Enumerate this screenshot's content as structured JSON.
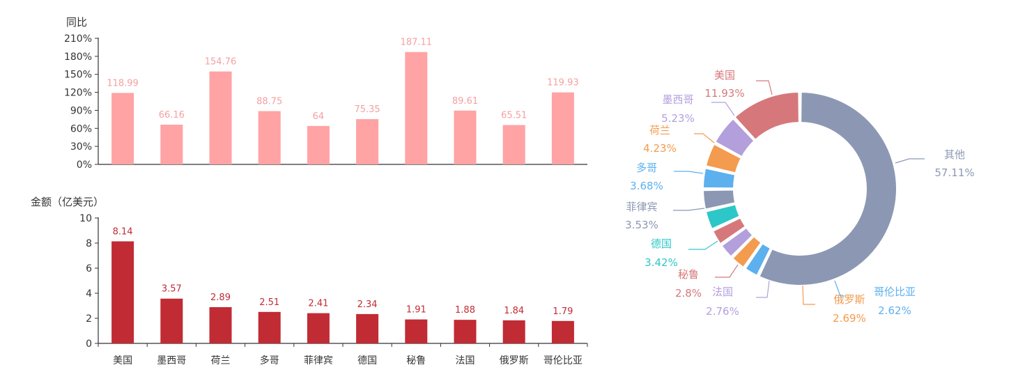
{
  "chart_data": [
    {
      "type": "bar",
      "ylabel": "同比",
      "categories": [
        "美国",
        "墨西哥",
        "荷兰",
        "多哥",
        "菲律宾",
        "德国",
        "秘鲁",
        "法国",
        "俄罗斯",
        "哥伦比亚"
      ],
      "values": [
        118.99,
        66.16,
        154.76,
        88.75,
        64,
        75.35,
        187.11,
        89.61,
        65.51,
        119.93
      ],
      "value_labels": [
        "118.99",
        "66.16",
        "154.76",
        "88.75",
        "64",
        "75.35",
        "187.11",
        "89.61",
        "65.51",
        "119.93"
      ],
      "yticks": [
        "0%",
        "30%",
        "60%",
        "90%",
        "120%",
        "150%",
        "180%",
        "210%"
      ],
      "ylim": [
        0,
        210
      ],
      "color": "#ffa3a4",
      "label_color": "#f4a0a2"
    },
    {
      "type": "bar",
      "ylabel": "金额（亿美元）",
      "categories": [
        "美国",
        "墨西哥",
        "荷兰",
        "多哥",
        "菲律宾",
        "德国",
        "秘鲁",
        "法国",
        "俄罗斯",
        "哥伦比亚"
      ],
      "values": [
        8.14,
        3.57,
        2.89,
        2.51,
        2.41,
        2.34,
        1.91,
        1.88,
        1.84,
        1.79
      ],
      "value_labels": [
        "8.14",
        "3.57",
        "2.89",
        "2.51",
        "2.41",
        "2.34",
        "1.91",
        "1.88",
        "1.84",
        "1.79"
      ],
      "yticks": [
        "0",
        "2",
        "4",
        "6",
        "8",
        "10"
      ],
      "ylim": [
        0,
        10
      ],
      "color": "#c12b34",
      "label_color": "#c12b34"
    },
    {
      "type": "pie",
      "slices": [
        {
          "name": "美国",
          "pct_label": "11.93%",
          "value": 11.93,
          "color": "#d6787b"
        },
        {
          "name": "墨西哥",
          "pct_label": "5.23%",
          "value": 5.23,
          "color": "#b39fdc"
        },
        {
          "name": "荷兰",
          "pct_label": "4.23%",
          "value": 4.23,
          "color": "#f39b4e"
        },
        {
          "name": "多哥",
          "pct_label": "3.68%",
          "value": 3.68,
          "color": "#5cb0ee"
        },
        {
          "name": "菲律宾",
          "pct_label": "3.53%",
          "value": 3.53,
          "color": "#8c98b3"
        },
        {
          "name": "德国",
          "pct_label": "3.42%",
          "value": 3.42,
          "color": "#2ec7c9"
        },
        {
          "name": "秘鲁",
          "pct_label": "2.8%",
          "value": 2.8,
          "color": "#d6787b"
        },
        {
          "name": "法国",
          "pct_label": "2.76%",
          "value": 2.76,
          "color": "#b39fdc"
        },
        {
          "name": "俄罗斯",
          "pct_label": "2.69%",
          "value": 2.69,
          "color": "#f39b4e"
        },
        {
          "name": "哥伦比亚",
          "pct_label": "2.62%",
          "value": 2.62,
          "color": "#5cb0ee"
        },
        {
          "name": "其他",
          "pct_label": "57.11%",
          "value": 57.11,
          "color": "#8c98b3"
        }
      ]
    }
  ]
}
